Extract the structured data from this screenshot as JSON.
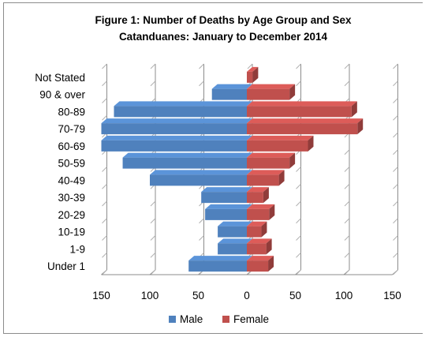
{
  "chart_data": {
    "type": "bar",
    "orientation": "horizontal",
    "title": "Figure 1: Number of Deaths by Age Group and Sex",
    "subtitle": "Catanduanes: January to December 2014",
    "categories": [
      "Under 1",
      "1-9",
      "10-19",
      "20-29",
      "30-39",
      "40-49",
      "50-59",
      "60-69",
      "70-79",
      "80-89",
      "90 & over",
      "Not Stated"
    ],
    "series": [
      {
        "name": "Male",
        "color": "#4F81BD",
        "direction": "left",
        "values": [
          60,
          30,
          30,
          43,
          47,
          100,
          128,
          150,
          150,
          137,
          36,
          0
        ]
      },
      {
        "name": "Female",
        "color": "#C0504D",
        "direction": "right",
        "values": [
          22,
          20,
          15,
          23,
          17,
          33,
          44,
          63,
          114,
          108,
          44,
          6
        ]
      }
    ],
    "xticks": [
      "150",
      "100",
      "50",
      "0",
      "50",
      "100",
      "150"
    ],
    "xlim": [
      -150,
      150
    ],
    "grid": true,
    "legend": "bottom",
    "xlabel": "",
    "ylabel": ""
  }
}
